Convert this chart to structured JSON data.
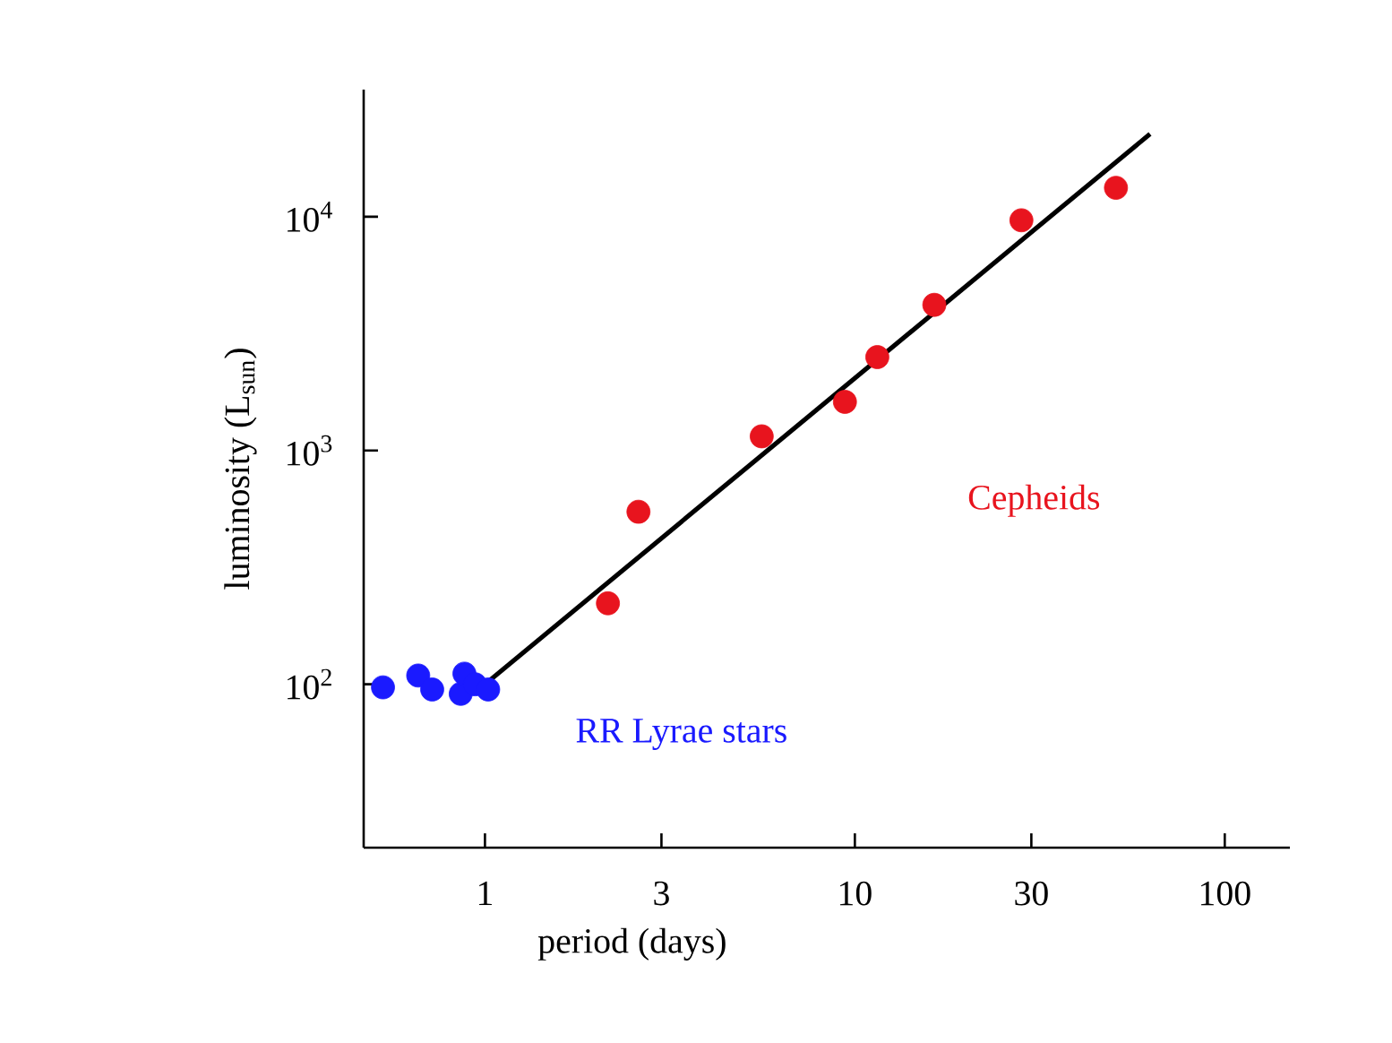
{
  "chart_data": {
    "type": "scatter",
    "xlabel": "period  (days)",
    "ylabel": "luminosity (L$_{sun}$)",
    "log": "xy",
    "grid": false,
    "legend": false,
    "marker": "circle",
    "xlim": [
      0.47,
      150
    ],
    "ylim": [
      20,
      35000
    ],
    "xticks": [
      1,
      3,
      10,
      30,
      100
    ],
    "yticks": [
      {
        "value": 100,
        "label": "10$^{2}$"
      },
      {
        "value": 1000,
        "label": "10$^{3}$"
      },
      {
        "value": 10000,
        "label": "10$^{4}$"
      }
    ],
    "series": [
      {
        "name": "Cepheids",
        "color": "#e8141e",
        "x": [
          2.15,
          2.6,
          5.6,
          9.4,
          11.5,
          16.4,
          28.2,
          50.8
        ],
        "values": [
          222,
          547,
          1150,
          1615,
          2510,
          4200,
          9660,
          13300
        ]
      },
      {
        "name": "RR Lyrae stars",
        "color": "#1a1aff",
        "x": [
          0.53,
          0.66,
          0.72,
          0.86,
          0.88,
          0.94,
          1.02
        ],
        "values": [
          97,
          109,
          95,
          91,
          111,
          100,
          95
        ]
      },
      {
        "type": "line",
        "color": "#000000",
        "marker": "none",
        "x": [
          1,
          62.8
        ],
        "values": [
          100,
          22600
        ]
      }
    ]
  }
}
